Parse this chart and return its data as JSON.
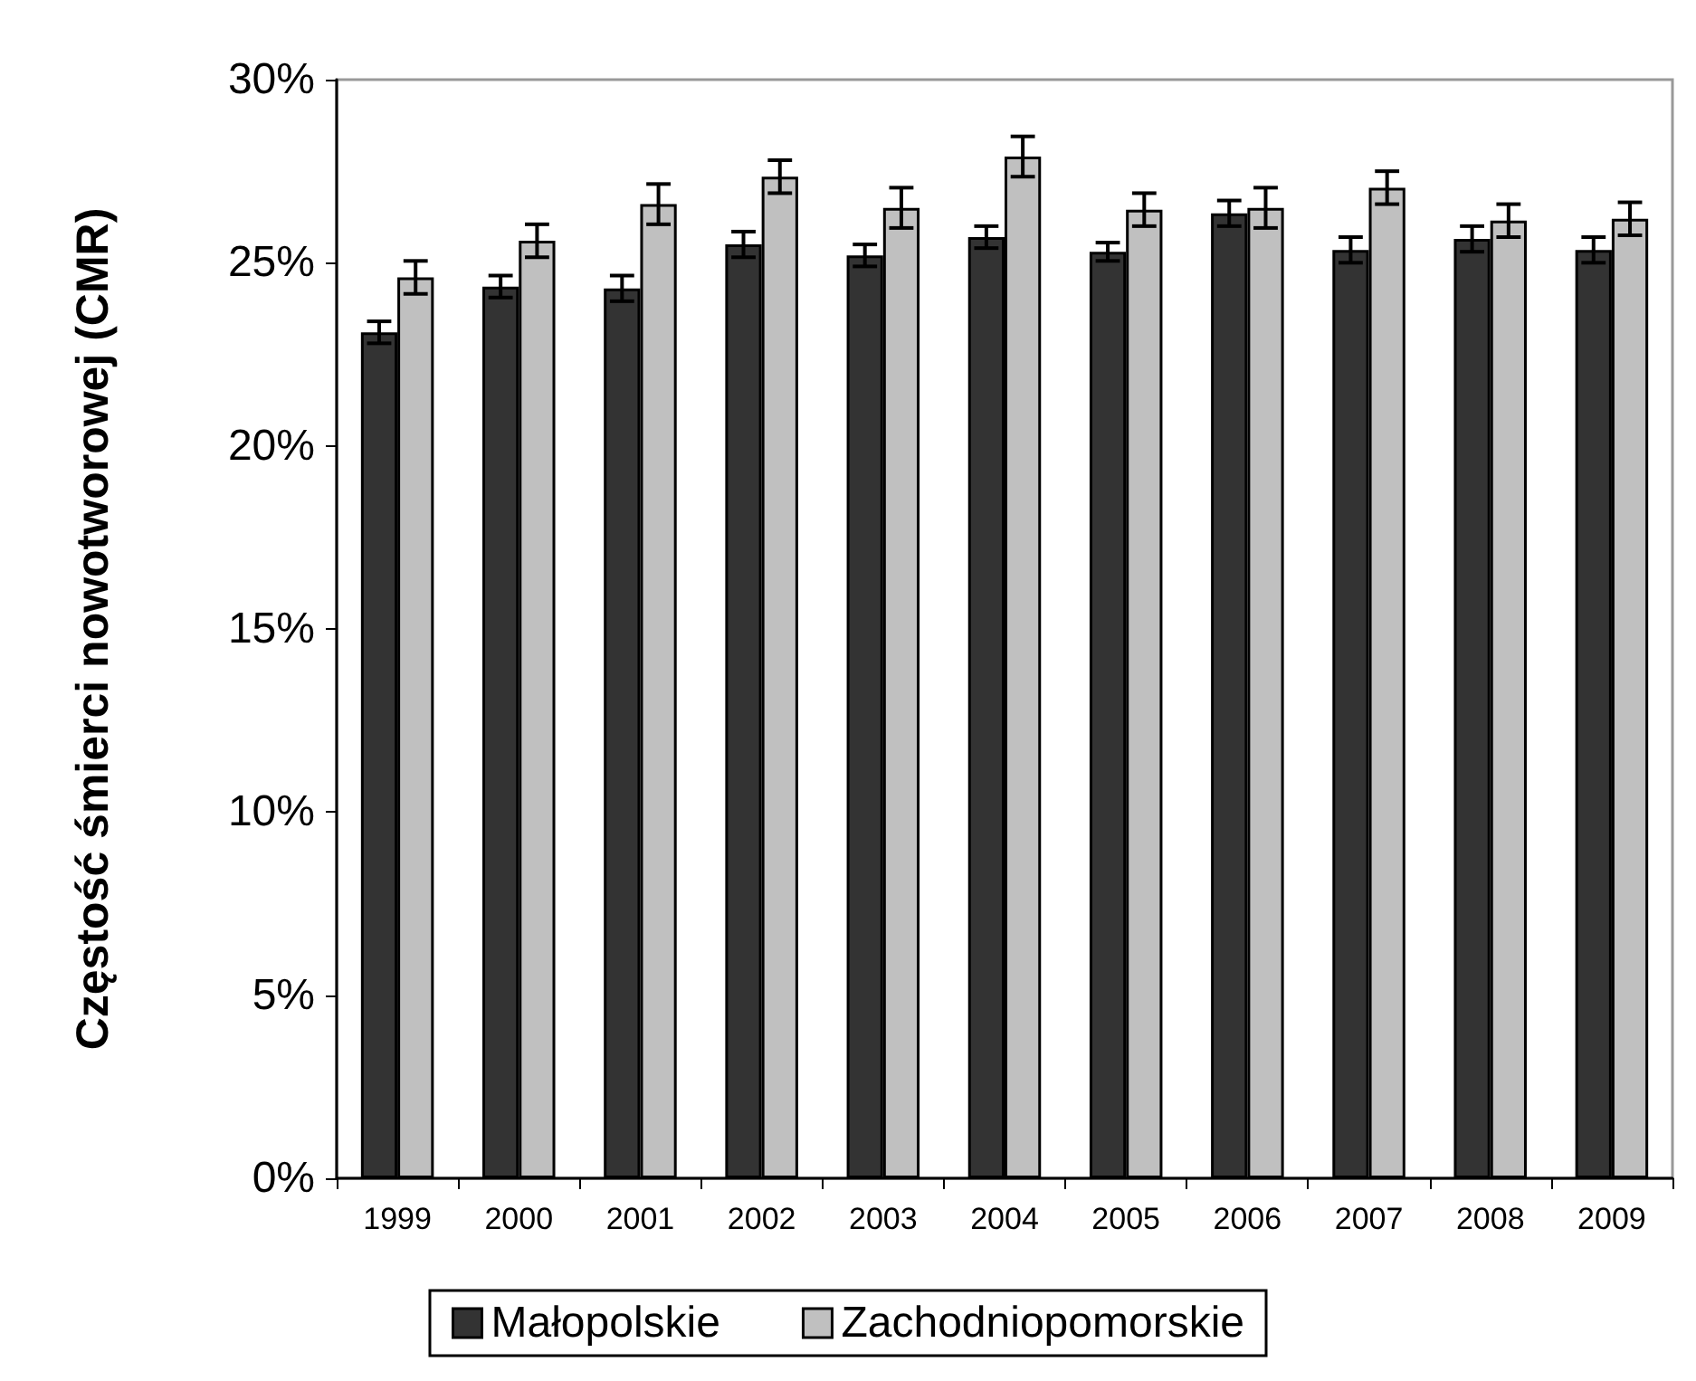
{
  "chart_data": {
    "type": "bar",
    "ylabel": "Częstość śmierci nowotworowej (CMR)",
    "categories": [
      "1999",
      "2000",
      "2001",
      "2002",
      "2003",
      "2004",
      "2005",
      "2006",
      "2007",
      "2008",
      "2009"
    ],
    "series": [
      {
        "name": "Małopolskie",
        "color": "#333333",
        "values": [
          23.1,
          24.35,
          24.3,
          25.5,
          25.2,
          25.7,
          25.3,
          26.35,
          25.35,
          25.65,
          25.35
        ],
        "errors": [
          0.3,
          0.3,
          0.35,
          0.35,
          0.3,
          0.3,
          0.25,
          0.35,
          0.35,
          0.35,
          0.35
        ]
      },
      {
        "name": "Zachodniopomorskie",
        "color": "#c0c0c0",
        "values": [
          24.6,
          25.6,
          26.6,
          27.35,
          26.5,
          27.9,
          26.45,
          26.5,
          27.05,
          26.15,
          26.2
        ],
        "errors": [
          0.45,
          0.45,
          0.55,
          0.45,
          0.55,
          0.55,
          0.45,
          0.55,
          0.45,
          0.45,
          0.45
        ]
      }
    ],
    "ylim": [
      0,
      30
    ],
    "yticks": [
      {
        "value": 0,
        "label": "0%"
      },
      {
        "value": 5,
        "label": "5%"
      },
      {
        "value": 10,
        "label": "10%"
      },
      {
        "value": 15,
        "label": "15%"
      },
      {
        "value": 20,
        "label": "20%"
      },
      {
        "value": 25,
        "label": "25%"
      },
      {
        "value": 30,
        "label": "30%"
      }
    ],
    "grid": false,
    "legend": "bottom"
  }
}
